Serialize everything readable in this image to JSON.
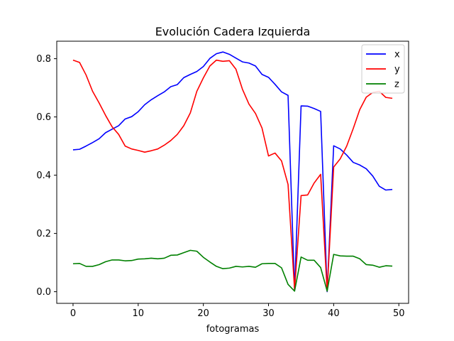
{
  "chart_data": {
    "type": "line",
    "title": "Evolución Cadera Izquierda",
    "xlabel": "fotogramas",
    "ylabel": "",
    "xlim": [
      -2.5,
      51.5
    ],
    "ylim": [
      -0.04,
      0.86
    ],
    "xticks": [
      0,
      10,
      20,
      30,
      40,
      50
    ],
    "yticks": [
      0.0,
      0.2,
      0.4,
      0.6,
      0.8
    ],
    "xtick_labels": [
      "0",
      "10",
      "20",
      "30",
      "40",
      "50"
    ],
    "ytick_labels": [
      "0.0",
      "0.2",
      "0.4",
      "0.6",
      "0.8"
    ],
    "grid": false,
    "legend": "top-right",
    "x": [
      0,
      1,
      2,
      3,
      4,
      5,
      6,
      7,
      8,
      9,
      10,
      11,
      12,
      13,
      14,
      15,
      16,
      17,
      18,
      19,
      20,
      21,
      22,
      23,
      24,
      25,
      26,
      27,
      28,
      29,
      30,
      31,
      32,
      33,
      34,
      35,
      36,
      37,
      38,
      39,
      40,
      41,
      42,
      43,
      44,
      45,
      46,
      47,
      48,
      49
    ],
    "series": [
      {
        "name": "x",
        "color": "#0000ff",
        "values": [
          0.487,
          0.489,
          0.5,
          0.512,
          0.525,
          0.546,
          0.558,
          0.57,
          0.593,
          0.601,
          0.618,
          0.642,
          0.659,
          0.673,
          0.686,
          0.704,
          0.711,
          0.735,
          0.746,
          0.756,
          0.773,
          0.801,
          0.817,
          0.823,
          0.815,
          0.802,
          0.789,
          0.785,
          0.775,
          0.746,
          0.736,
          0.712,
          0.686,
          0.674,
          0.003,
          0.638,
          0.637,
          0.629,
          0.619,
          0.0,
          0.501,
          0.49,
          0.469,
          0.444,
          0.435,
          0.422,
          0.397,
          0.362,
          0.349,
          0.351
        ]
      },
      {
        "name": "y",
        "color": "#ff0000",
        "values": [
          0.795,
          0.787,
          0.744,
          0.688,
          0.648,
          0.605,
          0.566,
          0.54,
          0.5,
          0.49,
          0.485,
          0.479,
          0.484,
          0.49,
          0.503,
          0.519,
          0.54,
          0.57,
          0.614,
          0.688,
          0.734,
          0.775,
          0.795,
          0.791,
          0.793,
          0.764,
          0.695,
          0.644,
          0.612,
          0.562,
          0.466,
          0.476,
          0.449,
          0.368,
          0.007,
          0.33,
          0.332,
          0.373,
          0.403,
          0.002,
          0.428,
          0.456,
          0.5,
          0.56,
          0.625,
          0.668,
          0.684,
          0.688,
          0.667,
          0.664
        ]
      },
      {
        "name": "z",
        "color": "#008000",
        "values": [
          0.096,
          0.097,
          0.087,
          0.087,
          0.093,
          0.103,
          0.109,
          0.109,
          0.106,
          0.107,
          0.112,
          0.113,
          0.115,
          0.113,
          0.115,
          0.125,
          0.126,
          0.134,
          0.142,
          0.139,
          0.118,
          0.102,
          0.087,
          0.079,
          0.081,
          0.087,
          0.085,
          0.087,
          0.084,
          0.096,
          0.097,
          0.097,
          0.082,
          0.025,
          0.002,
          0.119,
          0.108,
          0.108,
          0.083,
          0.002,
          0.128,
          0.123,
          0.122,
          0.122,
          0.113,
          0.093,
          0.091,
          0.084,
          0.089,
          0.088
        ]
      }
    ]
  }
}
